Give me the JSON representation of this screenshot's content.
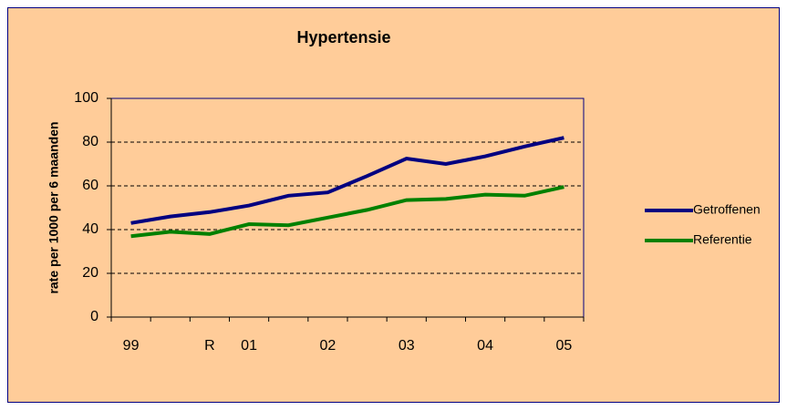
{
  "chart_data": {
    "type": "line",
    "title": "Hypertensie",
    "y_label": "rate per 1000 per 6 maanden",
    "categories": [
      "99",
      null,
      "R",
      "01",
      null,
      "02",
      null,
      "03",
      null,
      "04",
      null,
      "05"
    ],
    "series": [
      {
        "name": "Getroffenen",
        "color": "#000080",
        "values": [
          43,
          46,
          48,
          51,
          55.5,
          57,
          64.5,
          72.5,
          70,
          73.5,
          78,
          82
        ]
      },
      {
        "name": "Referentie",
        "color": "#008000",
        "values": [
          37,
          39,
          38,
          42.5,
          42,
          45.5,
          49,
          53.5,
          54,
          56,
          55.5,
          59.5
        ]
      }
    ],
    "ylim": [
      0,
      100
    ],
    "yticks": [
      0,
      20,
      40,
      60,
      80,
      100
    ],
    "grid": true,
    "legend": "right"
  }
}
